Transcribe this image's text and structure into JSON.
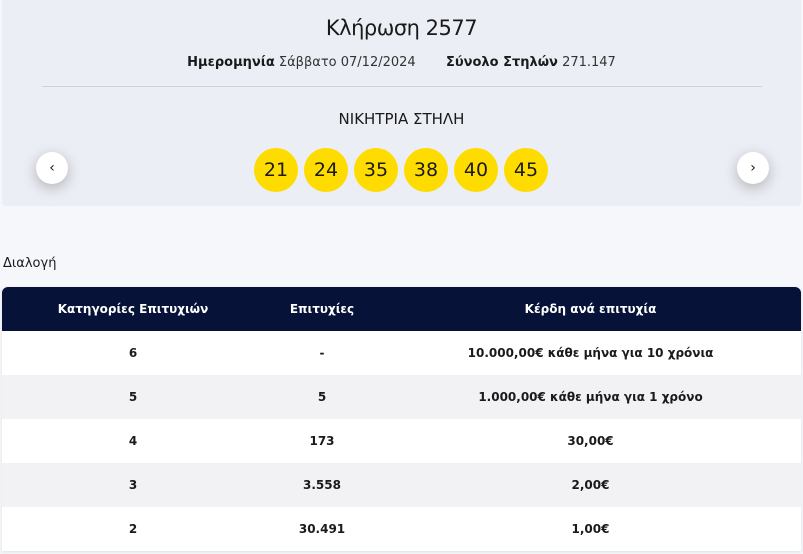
{
  "draw": {
    "title": "Κλήρωση 2577",
    "date_label": "Ημερομηνία",
    "date_value": "Σάββατο 07/12/2024",
    "total_label": "Σύνολο Στηλών",
    "total_value": "271.147",
    "winning_label": "ΝΙΚΗΤΡΙΑ ΣΤΗΛΗ",
    "numbers": [
      "21",
      "24",
      "35",
      "38",
      "40",
      "45"
    ],
    "ball_color": "#ffdc00",
    "prev_icon": "chevron-left-icon",
    "next_icon": "chevron-right-icon"
  },
  "selection_label": "Διαλογή",
  "table": {
    "header_color": "#061238",
    "headers": [
      "Κατηγορίες Επιτυχιών",
      "Επιτυχίες",
      "Κέρδη ανά επιτυχία"
    ],
    "rows": [
      [
        "6",
        "-",
        "10.000,00€ κάθε μήνα για 10 χρόνια"
      ],
      [
        "5",
        "5",
        "1.000,00€ κάθε μήνα για 1 χρόνο"
      ],
      [
        "4",
        "173",
        "30,00€"
      ],
      [
        "3",
        "3.558",
        "2,00€"
      ],
      [
        "2",
        "30.491",
        "1,00€"
      ]
    ]
  }
}
